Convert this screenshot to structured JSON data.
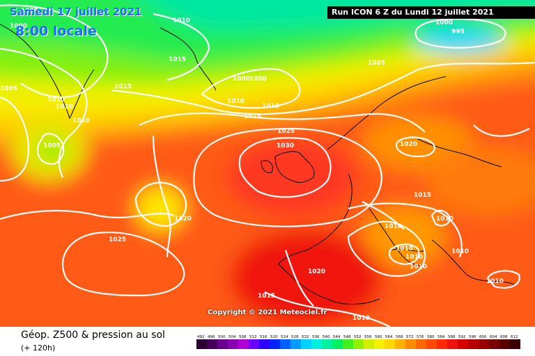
{
  "header": {
    "date": "Samedi 17 juillet 2021",
    "local_time": "8:00 locale",
    "run_info": "Run ICON 6 Z du Lundi 12 juillet 2021"
  },
  "copyright": "Copyright © 2021 Meteociel.fr",
  "footer": {
    "title": "Géop. Z500 & pression au sol",
    "subtitle": "(+ 120h)"
  },
  "scale": {
    "values": [
      "492",
      "496",
      "500",
      "504",
      "508",
      "512",
      "516",
      "520",
      "524",
      "528",
      "532",
      "536",
      "540",
      "544",
      "548",
      "552",
      "556",
      "560",
      "564",
      "568",
      "572",
      "576",
      "580",
      "584",
      "588",
      "592",
      "596",
      "600",
      "604",
      "608",
      "612"
    ],
    "colors": [
      "#2a0033",
      "#45005a",
      "#6a0090",
      "#8a00b4",
      "#b000d8",
      "#6a00ff",
      "#2c00ff",
      "#0024ff",
      "#0060ff",
      "#009cff",
      "#00d2ff",
      "#00f0e0",
      "#00f0a0",
      "#00f060",
      "#40f020",
      "#90f000",
      "#d0f000",
      "#f5f000",
      "#ffd800",
      "#ffb000",
      "#ff8c00",
      "#ff6800",
      "#ff4800",
      "#ff2800",
      "#f01010",
      "#d80000",
      "#b80000",
      "#980000",
      "#780000",
      "#580000",
      "#380000"
    ]
  },
  "map": {
    "background_color": "#ff5a14",
    "labels": [
      {
        "text": "1000",
        "name": "isobar-label-1000-nw"
      },
      {
        "text": "1010",
        "name": "isobar-label-1010-north"
      },
      {
        "text": "1005",
        "name": "isobar-label-1005-greenland"
      },
      {
        "text": "1015",
        "name": "isobar-label-1015-greenland"
      },
      {
        "text": "1005",
        "name": "isobar-label-1005-west"
      },
      {
        "text": "1015",
        "name": "isobar-label-1015-west"
      },
      {
        "text": "1010",
        "name": "isobar-label-1010-a"
      },
      {
        "text": "1010",
        "name": "isobar-label-1010-b"
      },
      {
        "text": "1010",
        "name": "isobar-label-1010-c"
      },
      {
        "text": "1005",
        "name": "isobar-label-1005-low"
      },
      {
        "text": "1000",
        "name": "isobar-label-1000-atl-a"
      },
      {
        "text": "1000",
        "name": "isobar-label-1000-atl-b"
      },
      {
        "text": "1010",
        "name": "isobar-label-1010-atl-a"
      },
      {
        "text": "1010",
        "name": "isobar-label-1010-atl-b"
      },
      {
        "text": "1015",
        "name": "isobar-label-1015-atl"
      },
      {
        "text": "1025",
        "name": "isobar-label-1025-north"
      },
      {
        "text": "1030",
        "name": "isobar-label-1030-uk"
      },
      {
        "text": "1005",
        "name": "isobar-label-1005-northsea"
      },
      {
        "text": "1000",
        "name": "isobar-label-1000-scand"
      },
      {
        "text": "995",
        "name": "isobar-label-995-scand"
      },
      {
        "text": "1020",
        "name": "isobar-label-1020-baltic"
      },
      {
        "text": "1020",
        "name": "isobar-label-1020-azores"
      },
      {
        "text": "1025",
        "name": "isobar-label-1025-atlantic"
      },
      {
        "text": "1015",
        "name": "isobar-label-1015-europe"
      },
      {
        "text": "1010",
        "name": "isobar-label-1010-alps"
      },
      {
        "text": "1010",
        "name": "isobar-label-1010-italy-a"
      },
      {
        "text": "1010",
        "name": "isobar-label-1010-italy-b"
      },
      {
        "text": "1010",
        "name": "isobar-label-1010-italy-c"
      },
      {
        "text": "1010",
        "name": "isobar-label-1010-balkans"
      },
      {
        "text": "1010",
        "name": "isobar-label-1010-greece-a"
      },
      {
        "text": "1010",
        "name": "isobar-label-1010-greece-b"
      },
      {
        "text": "1020",
        "name": "isobar-label-1020-iberia"
      },
      {
        "text": "1015",
        "name": "isobar-label-1015-morocco"
      },
      {
        "text": "1010",
        "name": "isobar-label-1010-africa"
      }
    ]
  }
}
